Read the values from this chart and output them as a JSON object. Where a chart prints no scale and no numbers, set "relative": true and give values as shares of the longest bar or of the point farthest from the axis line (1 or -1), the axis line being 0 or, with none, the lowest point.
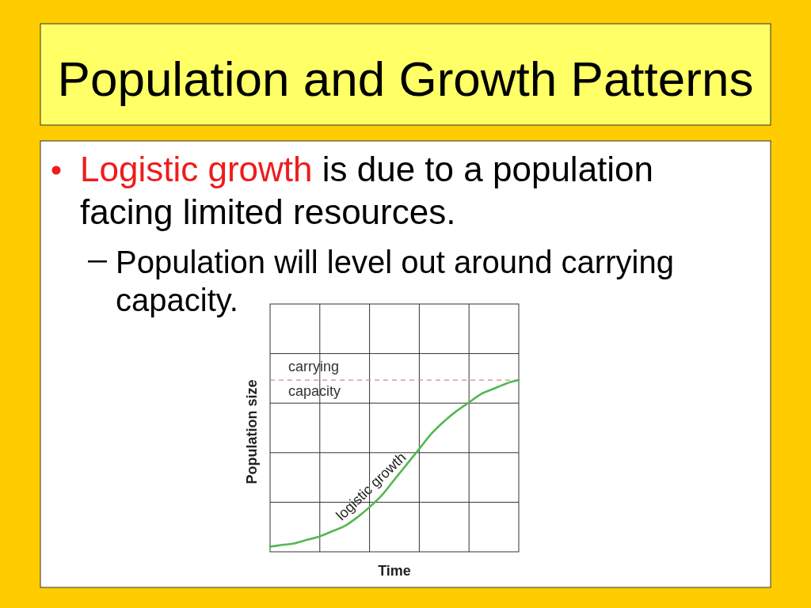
{
  "chart_data": {
    "type": "line",
    "title": "Population and Growth Patterns",
    "subtitle": "Logistic growth is due to a population facing limited resources.",
    "annotations": [
      "Population will level out around carrying capacity."
    ],
    "xlabel": "Time",
    "ylabel": "Population size",
    "categories": [
      null,
      null,
      null,
      null,
      null,
      null,
      null,
      null,
      null,
      null,
      null,
      null,
      null,
      null,
      null,
      null,
      null,
      null,
      null,
      null,
      null
    ],
    "series": [
      {
        "name": "logistic growth",
        "color": "#52b852",
        "values": [
          0.03,
          0.04,
          0.05,
          0.07,
          0.09,
          0.12,
          0.15,
          0.2,
          0.26,
          0.33,
          0.42,
          0.51,
          0.6,
          0.69,
          0.76,
          0.82,
          0.87,
          0.92,
          0.95,
          0.98,
          1
        ]
      }
    ],
    "relative": true,
    "grid": true,
    "line_style": "solid",
    "ref_lines": [
      {
        "axis": "y",
        "value": 1,
        "label": "carrying capacity",
        "color": "#d08a8a",
        "line_style": "dashed"
      }
    ]
  }
}
